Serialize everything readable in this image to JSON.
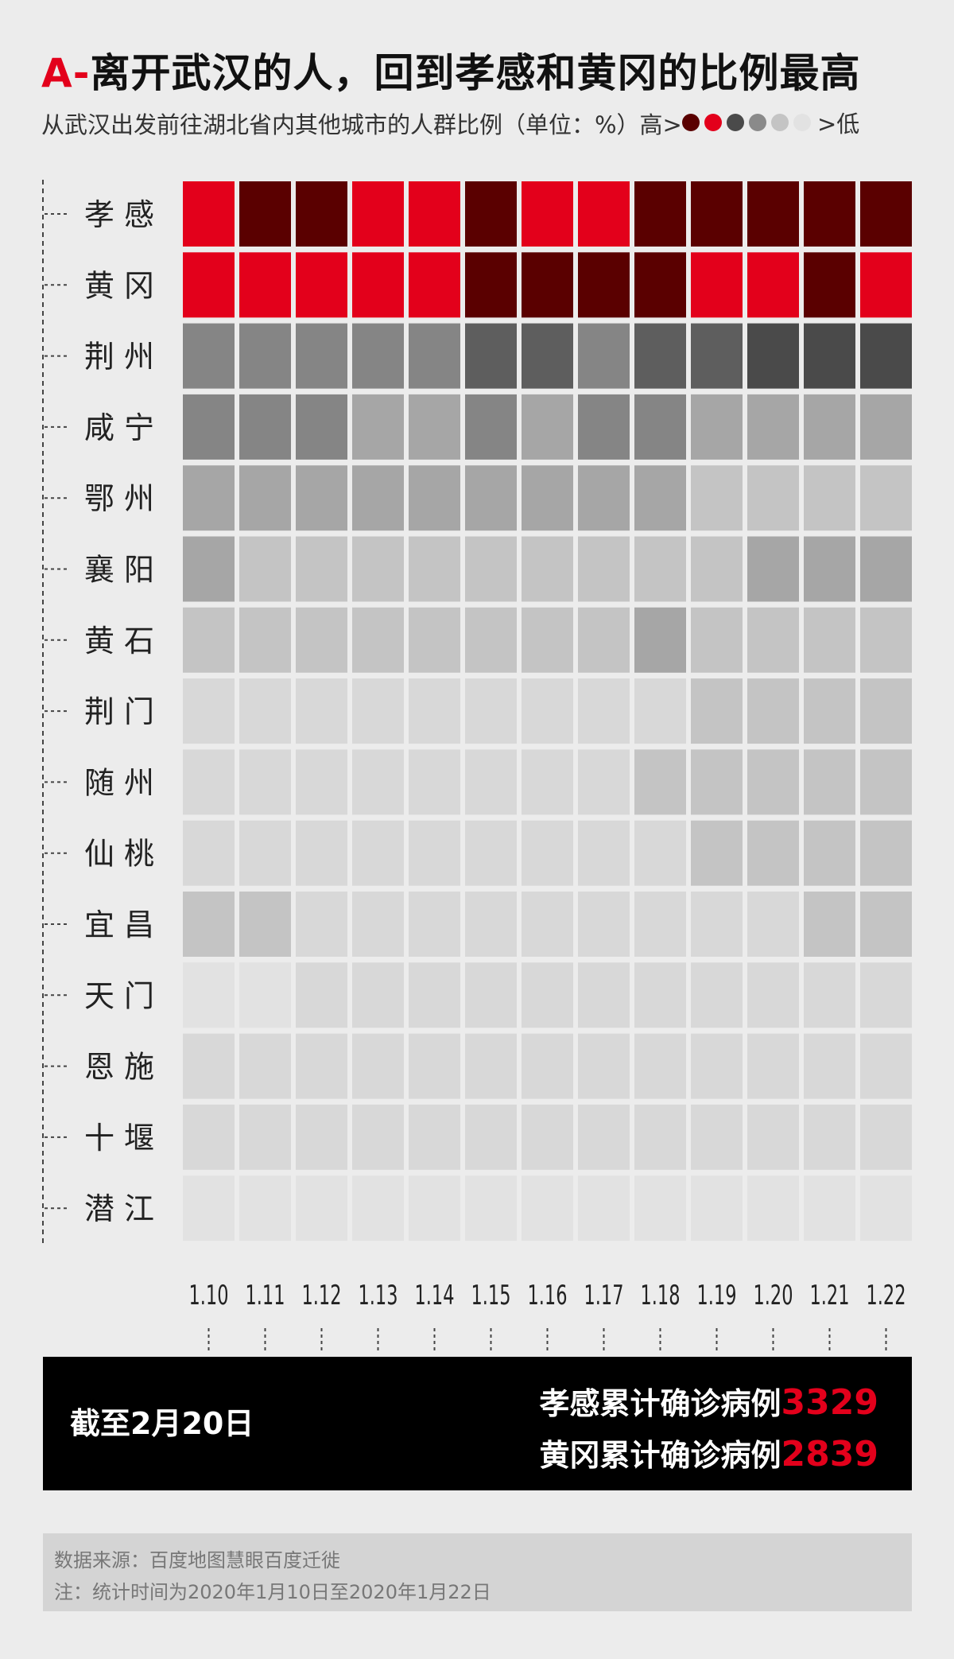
{
  "title": {
    "prefix": "A-",
    "text": "离开武汉的人，回到孝感和黄冈的比例最高"
  },
  "subtitle": "从武汉出发前往湖北省内其他城市的人群比例（单位：%）高>",
  "legend": {
    "high_label": "高>",
    "low_label": ">低",
    "colors": [
      "#5a0000",
      "#e3001b",
      "#4a4a4a",
      "#8a8a8a",
      "#c4c4c4",
      "#e2e2e2"
    ]
  },
  "chart_data": {
    "type": "heatmap",
    "x": [
      "1.10",
      "1.11",
      "1.12",
      "1.13",
      "1.14",
      "1.15",
      "1.16",
      "1.17",
      "1.18",
      "1.19",
      "1.20",
      "1.21",
      "1.22"
    ],
    "y": [
      "孝 感",
      "黄 冈",
      "荆 州",
      "咸 宁",
      "鄂 州",
      "襄 阳",
      "黄 石",
      "荆 门",
      "随 州",
      "仙 桃",
      "宜 昌",
      "天 门",
      "恩 施",
      "十 堰",
      "潜 江"
    ],
    "color_scale": {
      "8": "#5a0000",
      "7": "#e3001b",
      "6": "#4a4a4a",
      "5": "#5e5e5e",
      "4": "#858585",
      "3": "#a6a6a6",
      "2": "#c4c4c4",
      "1": "#d8d8d8",
      "0": "#e2e2e2"
    },
    "levels": [
      [
        7,
        8,
        8,
        7,
        7,
        8,
        7,
        7,
        8,
        8,
        8,
        8,
        8
      ],
      [
        7,
        7,
        7,
        7,
        7,
        8,
        8,
        8,
        8,
        7,
        7,
        8,
        7
      ],
      [
        4,
        4,
        4,
        4,
        4,
        5,
        5,
        4,
        5,
        5,
        6,
        6,
        6
      ],
      [
        4,
        4,
        4,
        3,
        3,
        4,
        3,
        4,
        4,
        3,
        3,
        3,
        3
      ],
      [
        3,
        3,
        3,
        3,
        3,
        3,
        3,
        3,
        3,
        2,
        2,
        2,
        2
      ],
      [
        3,
        2,
        2,
        2,
        2,
        2,
        2,
        2,
        2,
        2,
        3,
        3,
        3
      ],
      [
        2,
        2,
        2,
        2,
        2,
        2,
        2,
        2,
        3,
        2,
        2,
        2,
        2
      ],
      [
        1,
        1,
        1,
        1,
        1,
        1,
        1,
        1,
        1,
        2,
        2,
        2,
        2
      ],
      [
        1,
        1,
        1,
        1,
        1,
        1,
        1,
        1,
        2,
        2,
        2,
        2,
        2
      ],
      [
        1,
        1,
        1,
        1,
        1,
        1,
        1,
        1,
        1,
        2,
        2,
        2,
        2
      ],
      [
        2,
        2,
        1,
        1,
        1,
        1,
        1,
        1,
        1,
        1,
        1,
        2,
        2
      ],
      [
        0,
        0,
        1,
        1,
        1,
        1,
        1,
        1,
        1,
        1,
        1,
        1,
        1
      ],
      [
        1,
        1,
        1,
        1,
        1,
        1,
        1,
        1,
        1,
        1,
        1,
        1,
        1
      ],
      [
        1,
        1,
        1,
        1,
        1,
        1,
        1,
        1,
        1,
        1,
        1,
        1,
        1
      ],
      [
        0,
        0,
        0,
        0,
        0,
        0,
        0,
        0,
        0,
        0,
        0,
        0,
        0
      ]
    ]
  },
  "footer": {
    "as_of": "截至2月20日",
    "line1_label": "孝感累计确诊病例",
    "line1_value": "3329",
    "line2_label": "黄冈累计确诊病例",
    "line2_value": "2839"
  },
  "source": {
    "line1": "数据来源：百度地图慧眼百度迁徙",
    "line2": "注：统计时间为2020年1月10日至2020年1月22日"
  }
}
